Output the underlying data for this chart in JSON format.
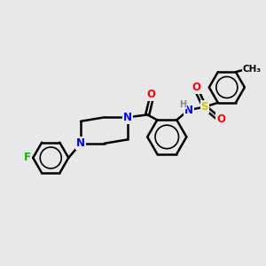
{
  "bg_color": "#e8e8e8",
  "bond_color": "#000000",
  "bond_width": 1.8,
  "atom_colors": {
    "N": "#0000ff",
    "O": "#ff0000",
    "F": "#00bb00",
    "S": "#cccc00",
    "H": "#888888",
    "C": "#000000"
  },
  "font_size": 8.5,
  "fig_size": [
    3.0,
    3.0
  ],
  "dpi": 100
}
